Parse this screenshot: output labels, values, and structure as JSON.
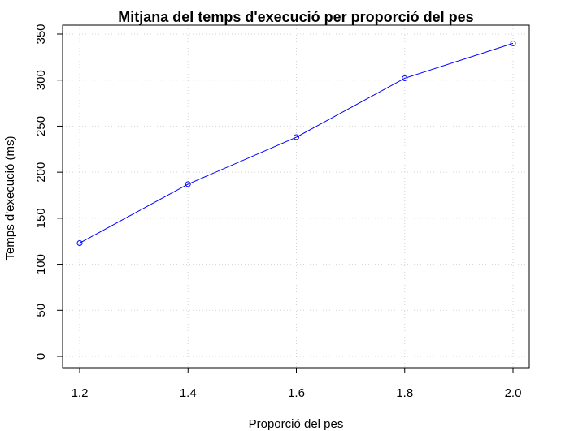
{
  "chart_data": {
    "type": "line",
    "title": "Mitjana del temps d'execució per proporció del pes",
    "xlabel": "Proporció del pes",
    "ylabel": "Temps d'execució (ms)",
    "x": [
      1.2,
      1.4,
      1.6,
      1.8,
      2.0
    ],
    "series": [
      {
        "values": [
          123,
          187,
          238,
          302,
          340
        ]
      }
    ],
    "x_ticks": [
      "1.2",
      "1.4",
      "1.6",
      "1.8",
      "2.0"
    ],
    "y_ticks": [
      "0",
      "50",
      "100",
      "150",
      "200",
      "250",
      "300",
      "350"
    ],
    "xlim": [
      1.2,
      2.0
    ],
    "ylim": [
      0,
      350
    ],
    "grid": true,
    "line_color": "#0000ff",
    "marker": "open-circle"
  }
}
